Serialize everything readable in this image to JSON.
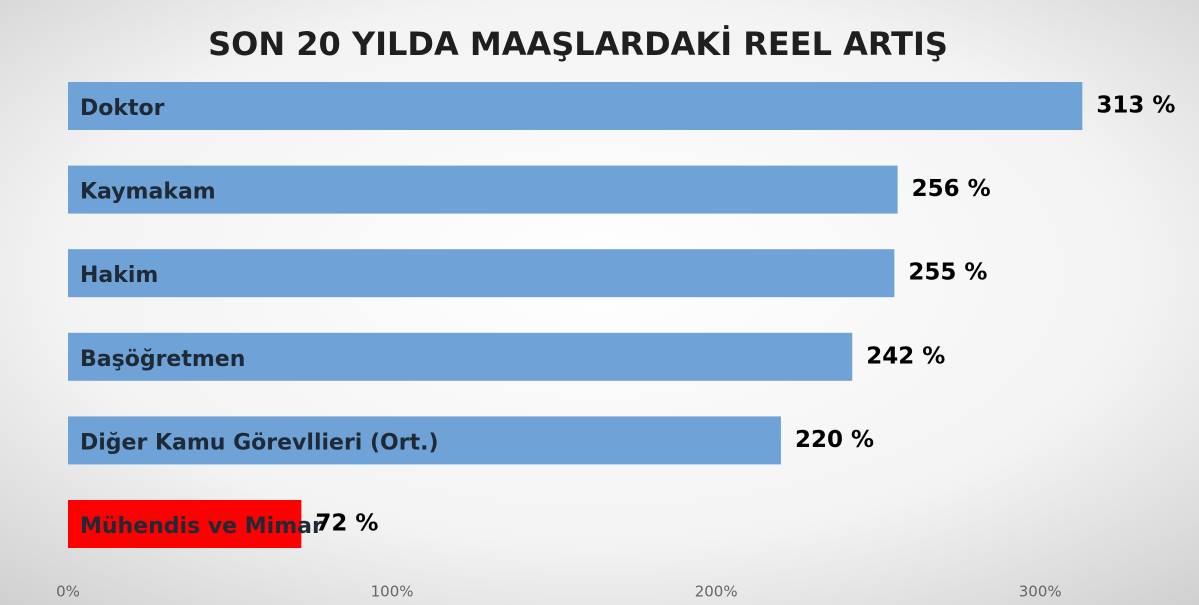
{
  "chart_data": {
    "type": "hbar",
    "title": "SON 20 YILDA MAAŞLARDAKİ REEL ARTIŞ",
    "categories": [
      "Doktor",
      "Kaymakam",
      "Hakim",
      "Başöğretmen",
      "Diğer Kamu Görevllieri (Ort.)",
      "Mühendis ve Mimar"
    ],
    "values": [
      313,
      256,
      255,
      242,
      220,
      72
    ],
    "value_labels": [
      "313 %",
      "256 %",
      "255 %",
      "242 %",
      "220 %",
      "72 %"
    ],
    "colors": [
      "#6fa3d8",
      "#6fa3d8",
      "#6fa3d8",
      "#6fa3d8",
      "#6fa3d8",
      "#ff0000"
    ],
    "xlim": [
      0,
      349
    ],
    "xticks": [
      {
        "value": 0,
        "label": "0%"
      },
      {
        "value": 100,
        "label": "100%"
      },
      {
        "value": 200,
        "label": "200%"
      },
      {
        "value": 300,
        "label": "300%"
      }
    ]
  }
}
